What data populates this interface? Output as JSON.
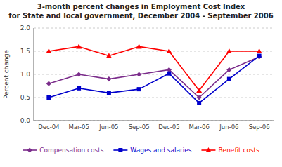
{
  "chart_data": {
    "type": "line",
    "title": "3-month percent changes in Employment Cost Index",
    "subtitle": "for State and local government, December 2004 - September 2006",
    "y_label": "Percent change",
    "categories": [
      "Dec-04",
      "Mar-05",
      "Jun-05",
      "Sep-05",
      "Dec-05",
      "Mar-06",
      "Jun-06",
      "Sep-06"
    ],
    "series": [
      {
        "name": "Compensation costs",
        "color": "#7B2C8B",
        "marker": "diamond",
        "values": [
          0.8,
          1.0,
          0.9,
          1.0,
          1.1,
          0.5,
          1.1,
          1.38
        ]
      },
      {
        "name": "Wages and salaries",
        "color": "#0000CC",
        "marker": "square",
        "values": [
          0.5,
          0.7,
          0.6,
          0.68,
          1.02,
          0.38,
          0.9,
          1.4
        ]
      },
      {
        "name": "Benefit costs",
        "color": "#FF0000",
        "marker": "triangle",
        "values": [
          1.5,
          1.6,
          1.4,
          1.6,
          1.5,
          0.65,
          1.5,
          1.5
        ]
      }
    ],
    "ylim": [
      0.0,
      2.0
    ],
    "yticks": [
      {
        "value": 0.0,
        "label": "0.0"
      },
      0.5,
      {
        "value": 1.0,
        "label": "1.0"
      },
      1.5,
      {
        "value": 2.0,
        "label": "2.0"
      }
    ],
    "grid": true,
    "legend": "bottom"
  }
}
